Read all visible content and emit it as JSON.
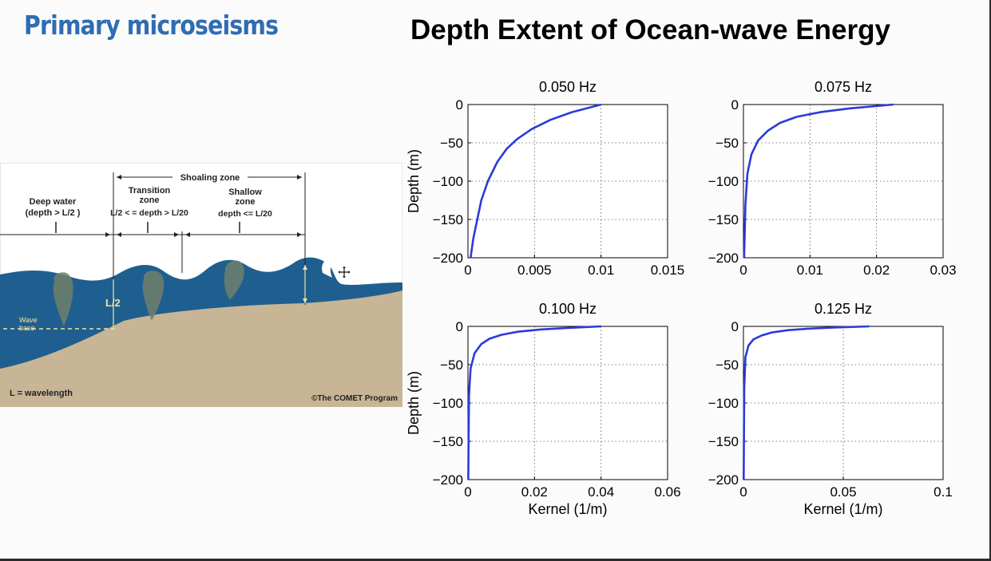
{
  "slide": {
    "left_title": "Primary microseisms",
    "right_title": "Depth Extent of Ocean-wave Energy"
  },
  "diagram": {
    "shoaling_zone": "Shoaling zone",
    "deep_water_line1": "Deep water",
    "deep_water_line2": "(depth > L/2 )",
    "transition_line1": "Transition",
    "transition_line2": "zone",
    "transition_line3": "L/2 < = depth > L/20",
    "shallow_line1": "Shallow",
    "shallow_line2": "zone",
    "shallow_line3": "depth <= L/20",
    "half_wavelength": "L/2",
    "wave_base_line1": "Wave",
    "wave_base_line2": "base",
    "wavelength_legend": "L = wavelength",
    "credit": "©The COMET Program",
    "colors": {
      "water": "#1f5f8f",
      "seafloor": "#c8b596",
      "text_light": "#f3e3a0"
    }
  },
  "chart_data": [
    {
      "type": "line",
      "title": "0.050 Hz",
      "xlabel": "",
      "ylabel": "Depth (m)",
      "xlim": [
        0,
        0.015
      ],
      "ylim": [
        -200,
        0
      ],
      "xticks": [
        "0",
        "0.005",
        "0.01",
        "0.015"
      ],
      "yticks": [
        "0",
        "−50",
        "−100",
        "−150",
        "−200"
      ],
      "grid": true,
      "color": "#2b3bd6",
      "series": [
        {
          "x": [
            0.01,
            0.0078,
            0.0062,
            0.0048,
            0.0037,
            0.0029,
            0.0022,
            0.0015,
            0.001,
            0.0007,
            0.0004,
            0.0002
          ],
          "y": [
            0,
            -10,
            -20,
            -32,
            -45,
            -58,
            -75,
            -100,
            -125,
            -150,
            -175,
            -200
          ]
        }
      ]
    },
    {
      "type": "line",
      "title": "0.075 Hz",
      "xlabel": "",
      "ylabel": "",
      "xlim": [
        0,
        0.03
      ],
      "ylim": [
        -200,
        0
      ],
      "xticks": [
        "0",
        "0.01",
        "0.02",
        "0.03"
      ],
      "yticks": [
        "0",
        "−50",
        "−100",
        "−150",
        "−200"
      ],
      "grid": true,
      "color": "#2b3bd6",
      "series": [
        {
          "x": [
            0.0225,
            0.016,
            0.0115,
            0.008,
            0.0055,
            0.0037,
            0.0022,
            0.0012,
            0.0006,
            0.0003,
            0.0001
          ],
          "y": [
            0,
            -5,
            -10,
            -16,
            -24,
            -34,
            -47,
            -65,
            -90,
            -130,
            -200
          ]
        }
      ]
    },
    {
      "type": "line",
      "title": "0.100 Hz",
      "xlabel": "Kernel (1/m)",
      "ylabel": "Depth (m)",
      "xlim": [
        0,
        0.06
      ],
      "ylim": [
        -200,
        0
      ],
      "xticks": [
        "0",
        "0.02",
        "0.04",
        "0.06"
      ],
      "yticks": [
        "0",
        "−50",
        "−100",
        "−150",
        "−200"
      ],
      "grid": true,
      "color": "#2b3bd6",
      "series": [
        {
          "x": [
            0.04,
            0.03,
            0.022,
            0.015,
            0.01,
            0.0065,
            0.004,
            0.002,
            0.0008,
            0.0003,
            0.0001
          ],
          "y": [
            0,
            -2,
            -4,
            -7,
            -11,
            -16,
            -23,
            -35,
            -55,
            -90,
            -200
          ]
        }
      ]
    },
    {
      "type": "line",
      "title": "0.125 Hz",
      "xlabel": "Kernel (1/m)",
      "ylabel": "",
      "xlim": [
        0,
        0.1
      ],
      "ylim": [
        -200,
        0
      ],
      "xticks": [
        "0",
        "0.05",
        "0.1"
      ],
      "yticks": [
        "0",
        "−50",
        "−100",
        "−150",
        "−200"
      ],
      "grid": true,
      "color": "#2b3bd6",
      "series": [
        {
          "x": [
            0.063,
            0.045,
            0.032,
            0.022,
            0.014,
            0.009,
            0.005,
            0.0025,
            0.001,
            0.0004,
            0.0001
          ],
          "y": [
            0,
            -1.5,
            -3,
            -5,
            -8,
            -12,
            -17,
            -25,
            -40,
            -80,
            -200
          ]
        }
      ]
    }
  ]
}
